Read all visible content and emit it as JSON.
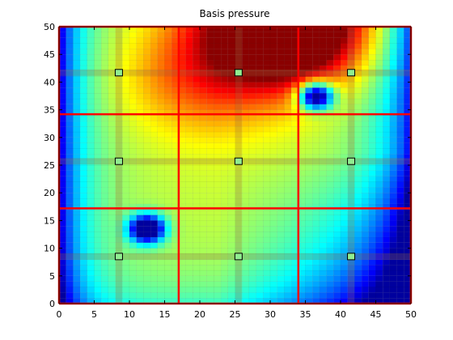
{
  "chart_data": {
    "type": "heatmap",
    "title": "Basis pressure",
    "xlabel": "",
    "ylabel": "",
    "xlim": [
      0,
      50
    ],
    "ylim": [
      0,
      50
    ],
    "xticks": [
      "0",
      "5",
      "10",
      "15",
      "20",
      "25",
      "30",
      "35",
      "40",
      "45",
      "50"
    ],
    "yticks": [
      "0",
      "5",
      "10",
      "15",
      "20",
      "25",
      "30",
      "35",
      "40",
      "45",
      "50"
    ],
    "grid_resolution": 50,
    "colormap": "jet",
    "coarse_grid_lines": {
      "x": [
        17,
        34
      ],
      "y": [
        17.2,
        34.2
      ],
      "color": "#ff0000"
    },
    "fine_line_centers": {
      "x": [
        8.5,
        25.5,
        41.5
      ],
      "y": [
        8.5,
        25.7,
        41.7
      ]
    },
    "markers": [
      {
        "x": 8.5,
        "y": 8.5
      },
      {
        "x": 25.5,
        "y": 8.5
      },
      {
        "x": 41.5,
        "y": 8.5
      },
      {
        "x": 8.5,
        "y": 25.7
      },
      {
        "x": 25.5,
        "y": 25.7
      },
      {
        "x": 41.5,
        "y": 25.7
      },
      {
        "x": 8.5,
        "y": 41.7
      },
      {
        "x": 25.5,
        "y": 41.7
      },
      {
        "x": 41.5,
        "y": 41.7
      }
    ],
    "marker_color": "#90ee90",
    "minima": [
      {
        "x": 12.5,
        "y": 13.5
      },
      {
        "x": 36.5,
        "y": 37.5
      }
    ]
  }
}
